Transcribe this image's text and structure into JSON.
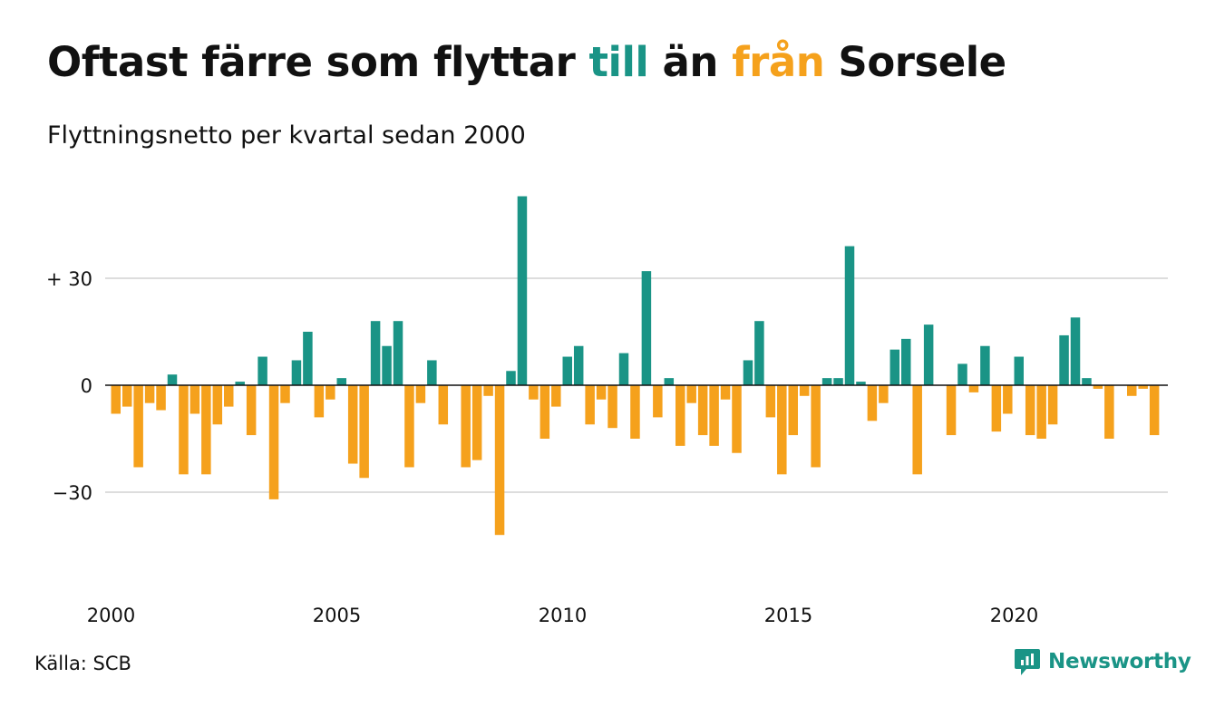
{
  "title": {
    "part1": "Oftast färre som flyttar ",
    "word_in": "till",
    "part2": " än ",
    "word_out": "från",
    "part3": " Sorsele"
  },
  "subtitle": "Flyttningsnetto per kvartal sedan 2000",
  "source": "Källa: SCB",
  "brand": {
    "name": "Newsworthy",
    "icon": "newsworthy-logo-icon"
  },
  "colors": {
    "positive": "#1a9486",
    "negative": "#f5a11c",
    "grid": "#dddddd",
    "zero_line": "#111111",
    "text": "#111111"
  },
  "chart_data": {
    "type": "bar",
    "title": "Oftast färre som flyttar till än från Sorsele",
    "subtitle": "Flyttningsnetto per kvartal sedan 2000",
    "xlabel": "",
    "ylabel": "",
    "x_start": "2000-Q1",
    "x_ticks": [
      "2000",
      "2005",
      "2010",
      "2015",
      "2020"
    ],
    "y_ticks": [
      -30,
      0,
      30
    ],
    "y_tick_labels": [
      "−30",
      "0",
      "+ 30"
    ],
    "ylim": [
      -55,
      55
    ],
    "grid": true,
    "legend": "none",
    "values": [
      -8,
      -6,
      -23,
      -5,
      -7,
      3,
      -25,
      -8,
      -25,
      -11,
      -6,
      1,
      -14,
      8,
      -32,
      -5,
      7,
      15,
      -9,
      -4,
      2,
      -22,
      -26,
      18,
      11,
      18,
      -23,
      -5,
      7,
      -11,
      0,
      -23,
      -21,
      -3,
      -42,
      4,
      53,
      -4,
      -15,
      -6,
      8,
      11,
      -11,
      -4,
      -12,
      9,
      -15,
      32,
      -9,
      2,
      -17,
      -5,
      -14,
      -17,
      -4,
      -19,
      7,
      18,
      -9,
      -25,
      -14,
      -3,
      -23,
      2,
      2,
      39,
      1,
      -10,
      -5,
      10,
      13,
      -25,
      17,
      0,
      -14,
      6,
      -2,
      11,
      -13,
      -8,
      8,
      -14,
      -15,
      -11,
      14,
      19,
      2,
      -1,
      -15,
      0,
      -3,
      -1,
      -14
    ]
  }
}
